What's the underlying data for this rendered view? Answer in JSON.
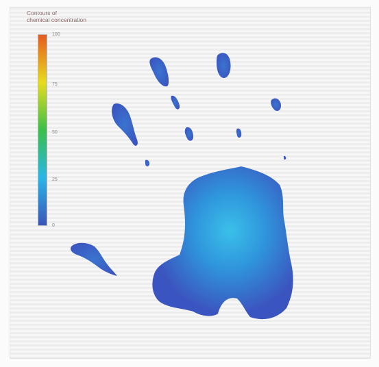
{
  "legend": {
    "title_line1": "Contours of",
    "title_line2": "chemical concentration",
    "colorbar": {
      "colors": [
        "#3b55b8",
        "#29b6e6",
        "#3bbf4a",
        "#e6dc1e",
        "#e65a1e"
      ],
      "ticks": [
        "100",
        "75",
        "50",
        "25",
        "0"
      ]
    }
  },
  "colors": {
    "shape_low": "#3b55c0",
    "shape_high": "#38bde8",
    "background_stripe": "#ededed"
  }
}
